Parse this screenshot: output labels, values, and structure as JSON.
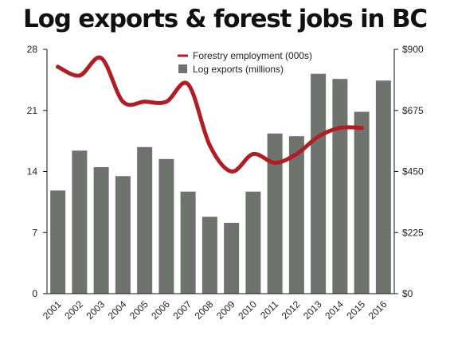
{
  "chart_data": {
    "type": "bar+line",
    "title": "Log exports & forest jobs in BC",
    "categories": [
      "2001",
      "2002",
      "2003",
      "2004",
      "2005",
      "2006",
      "2007",
      "2008",
      "2009",
      "2010",
      "2011",
      "2012",
      "2013",
      "2014",
      "2015",
      "2016"
    ],
    "series": [
      {
        "name": "Log exports (millions)",
        "type": "bar",
        "axis": "right",
        "color": "#6f736e",
        "values": [
          380,
          527,
          466,
          433,
          540,
          496,
          376,
          283,
          261,
          376,
          590,
          580,
          810,
          791,
          670,
          785
        ]
      },
      {
        "name": "Forestry employment (000s)",
        "type": "line",
        "axis": "left",
        "color": "#b01e23",
        "values": [
          26,
          25,
          27,
          22,
          22,
          22,
          24,
          17,
          14,
          16,
          15,
          16,
          18,
          19,
          19,
          null
        ]
      }
    ],
    "left_axis": {
      "min": 0,
      "max": 28,
      "ticks": [
        "0",
        "7",
        "14",
        "21",
        "28"
      ]
    },
    "right_axis": {
      "min": 0,
      "max": 900,
      "ticks": [
        "$0",
        "$225",
        "$450",
        "$675",
        "$900"
      ]
    },
    "legend_position": "top-center",
    "grid": false
  }
}
